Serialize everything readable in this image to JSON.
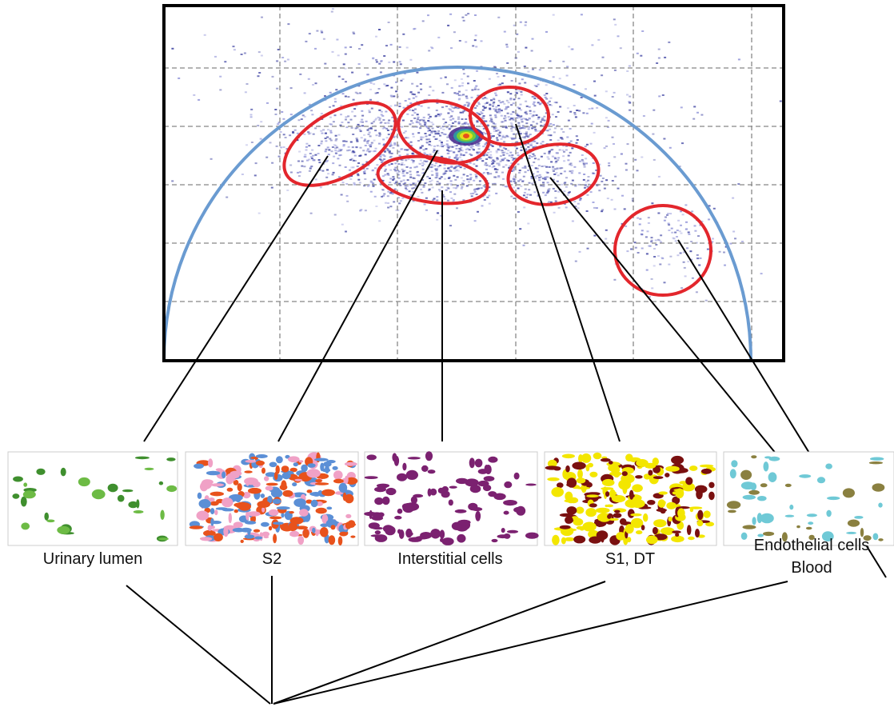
{
  "panels": [
    {
      "label": "Urinary lumen"
    },
    {
      "label": "S2"
    },
    {
      "label": "Interstitial cells"
    },
    {
      "label": "S1, DT"
    },
    {
      "label": "Endothelial cells",
      "sublabel": "Blood"
    }
  ]
}
